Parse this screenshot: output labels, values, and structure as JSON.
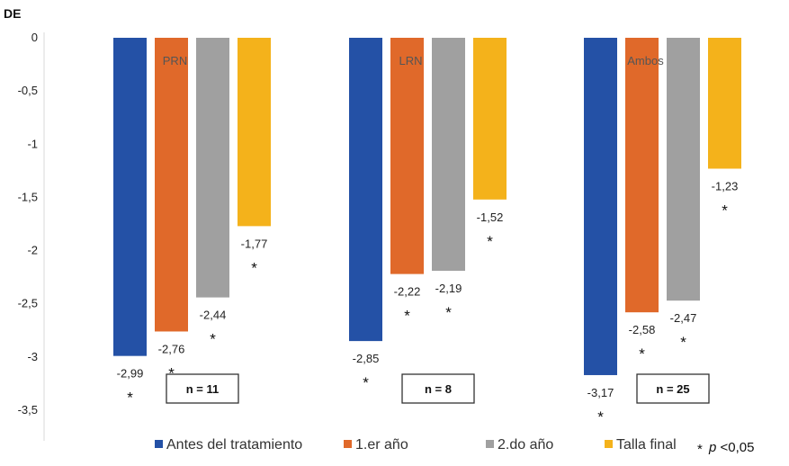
{
  "chart_data": {
    "type": "bar",
    "ylabel": "DE",
    "ylim": [
      -3.5,
      0
    ],
    "yticks": [
      "0",
      "-0,5",
      "-1",
      "-1,5",
      "-2",
      "-2,5",
      "-3",
      "-3,5"
    ],
    "categories": [
      "PRN",
      "LRN",
      "Ambos"
    ],
    "series": [
      {
        "name": "Antes del tratamiento",
        "color": "#2451a6",
        "values": [
          -2.99,
          -2.85,
          -3.17
        ],
        "labels": [
          "-2,99",
          "-2,85",
          "-3,17"
        ]
      },
      {
        "name": "1.er año",
        "color": "#e0692a",
        "values": [
          -2.76,
          -2.22,
          -2.58
        ],
        "labels": [
          "-2,76",
          "-2,22",
          "-2,58"
        ]
      },
      {
        "name": "2.do año",
        "color": "#a0a0a0",
        "values": [
          -2.44,
          -2.19,
          -2.47
        ],
        "labels": [
          "-2,44",
          "-2,19",
          "-2,47"
        ]
      },
      {
        "name": "Talla final",
        "color": "#f4b21b",
        "values": [
          -1.77,
          -1.52,
          -1.23
        ],
        "labels": [
          "-1,77",
          "-1,52",
          "-1,23"
        ]
      }
    ],
    "significance_marker": "*",
    "significant": [
      [
        true,
        true,
        true
      ],
      [
        true,
        true,
        true
      ],
      [
        true,
        true,
        true
      ],
      [
        true,
        true,
        true
      ]
    ],
    "n_labels": [
      "n = 11",
      "n = 8",
      "n = 25"
    ],
    "legend": {
      "position": "bottom",
      "p_marker": "*",
      "p_letter": "p",
      "p_text": " <0,05"
    },
    "grid": false
  }
}
